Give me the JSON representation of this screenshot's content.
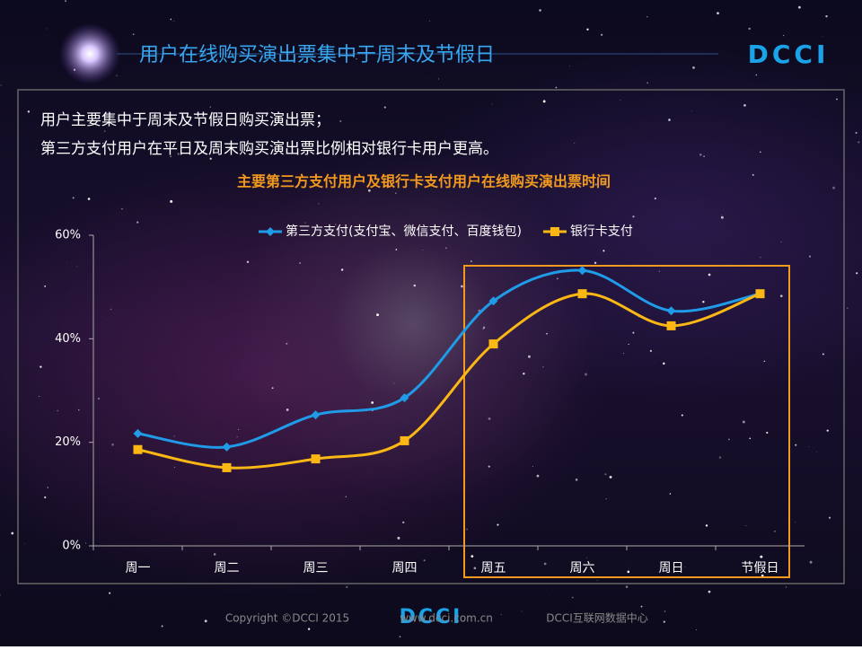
{
  "header": {
    "title": "用户在线购买演出票集中于周末及节假日",
    "logo": "DCCI"
  },
  "notes": [
    "用户主要集中于周末及节假日购买演出票；",
    "第三方支付用户在平日及周末购买演出票比例相对银行卡用户更高。"
  ],
  "chart_data": {
    "type": "line",
    "title": "主要第三方支付用户及银行卡支付用户在线购买演出票时间",
    "categories": [
      "周一",
      "周二",
      "周三",
      "周四",
      "周五",
      "周六",
      "周日",
      "节假日"
    ],
    "series": [
      {
        "name": "第三方支付(支付宝、微信支付、百度钱包)",
        "color": "#1f9be8",
        "marker": "diamond",
        "values": [
          21.7,
          19.1,
          25.3,
          28.6,
          47.3,
          53.2,
          45.4,
          48.7
        ]
      },
      {
        "name": "银行卡支付",
        "color": "#fbb814",
        "marker": "square",
        "values": [
          18.6,
          15.1,
          16.8,
          20.3,
          39.0,
          48.7,
          42.5,
          48.7
        ]
      }
    ],
    "ylim": [
      0,
      60
    ],
    "yticks": [
      {
        "value": 0,
        "label": "0%"
      },
      {
        "value": 20,
        "label": "20%"
      },
      {
        "value": 40,
        "label": "40%"
      },
      {
        "value": 60,
        "label": "60%"
      }
    ],
    "legend": "top"
  },
  "footer": {
    "logo": "DCCI",
    "copyright": "Copyright ©DCCI 2015",
    "url": "www.dcci.com.cn",
    "org": "DCCI互联网数据中心"
  }
}
